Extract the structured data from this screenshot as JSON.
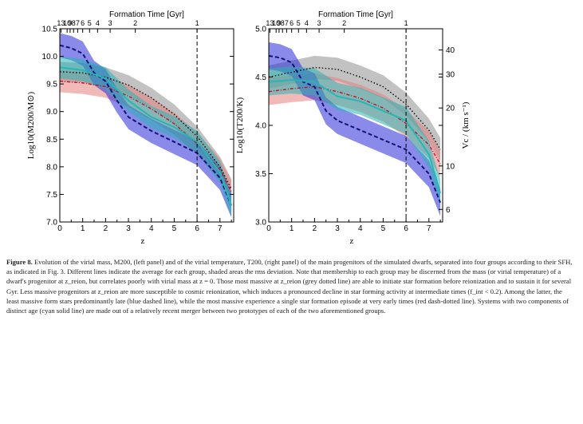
{
  "figure": {
    "panels": [
      {
        "id": "left",
        "top_axis_label": "Formation Time [Gyr]",
        "top_ticks": [
          "13",
          "10",
          "9",
          "8",
          "7",
          "6",
          "5",
          "4",
          "3",
          "2",
          "1"
        ],
        "bottom_ticks": [
          "0",
          "1",
          "2",
          "3",
          "4",
          "5",
          "6",
          "7"
        ],
        "xlabel": "z",
        "ylabel": "Log10(M200/M⊙)",
        "yticks": [
          "10.5",
          "10.0",
          "9.5",
          "9.0",
          "8.5",
          "8.0",
          "7.5",
          "7.0"
        ],
        "right_label": "",
        "right_ticks": []
      },
      {
        "id": "right",
        "top_axis_label": "Formation Time [Gyr]",
        "top_ticks": [
          "13",
          "10",
          "9",
          "8",
          "7",
          "6",
          "5",
          "4",
          "3",
          "2",
          "1"
        ],
        "bottom_ticks": [
          "0",
          "1",
          "2",
          "3",
          "4",
          "5",
          "6",
          "7"
        ],
        "xlabel": "z",
        "ylabel": "Log10(T200/K)",
        "yticks": [
          "5.0",
          "4.5",
          "4.0",
          "3.5",
          "3.0"
        ],
        "right_label": "Vc / (km s⁻¹)",
        "right_ticks": [
          "40",
          "30",
          "20",
          "10",
          "6"
        ]
      }
    ],
    "colors": {
      "grey": "#8f8f8f",
      "red": "#e88080",
      "blue": "#2a2ad8",
      "cyan": "#2ab5b5"
    }
  },
  "chart_data": [
    {
      "type": "line",
      "panel": "left",
      "xlabel": "z",
      "ylabel": "Log10(M200/M⊙)",
      "xlim": [
        0,
        7.6
      ],
      "ylim": [
        7.0,
        10.5
      ],
      "reference_line_z": 6,
      "series": [
        {
          "style": "grey-dotted",
          "x": [
            0,
            1,
            2,
            3,
            4,
            5,
            6,
            7,
            7.5
          ],
          "y": [
            9.72,
            9.7,
            9.62,
            9.48,
            9.25,
            8.95,
            8.55,
            8.0,
            7.6
          ],
          "band": 0.18
        },
        {
          "style": "red-dash-dotted",
          "x": [
            0,
            1,
            2,
            3,
            4,
            5,
            6,
            7,
            7.5
          ],
          "y": [
            9.55,
            9.52,
            9.45,
            9.28,
            9.05,
            8.78,
            8.42,
            7.95,
            7.55
          ],
          "band": 0.2
        },
        {
          "style": "blue-dashed",
          "x": [
            0,
            0.5,
            1,
            1.5,
            2,
            2.5,
            3,
            4,
            5,
            6,
            7,
            7.5
          ],
          "y": [
            10.2,
            10.15,
            10.05,
            9.7,
            9.55,
            9.2,
            8.9,
            8.65,
            8.45,
            8.25,
            7.8,
            7.3
          ],
          "band": 0.22
        },
        {
          "style": "cyan-solid",
          "x": [
            0,
            1,
            2,
            3,
            4,
            5,
            6,
            7,
            7.5
          ],
          "y": [
            9.8,
            9.75,
            9.6,
            9.2,
            8.9,
            8.72,
            8.45,
            7.9,
            7.3
          ],
          "band": 0.2
        }
      ]
    },
    {
      "type": "line",
      "panel": "right",
      "xlabel": "z",
      "ylabel": "Log10(T200/K)",
      "xlim": [
        0,
        7.6
      ],
      "ylim": [
        3.0,
        5.0
      ],
      "reference_line_z": 6,
      "series": [
        {
          "style": "grey-dotted",
          "x": [
            0,
            1,
            2,
            3,
            4,
            5,
            6,
            7,
            7.5
          ],
          "y": [
            4.5,
            4.55,
            4.6,
            4.58,
            4.5,
            4.4,
            4.22,
            3.95,
            3.75
          ],
          "band": 0.12
        },
        {
          "style": "red-dash-dotted",
          "x": [
            0,
            1,
            2,
            3,
            4,
            5,
            6,
            7,
            7.5
          ],
          "y": [
            4.35,
            4.38,
            4.4,
            4.35,
            4.28,
            4.18,
            4.02,
            3.8,
            3.6
          ],
          "band": 0.14
        },
        {
          "style": "blue-dashed",
          "x": [
            0,
            0.5,
            1,
            1.5,
            2,
            2.5,
            3,
            4,
            5,
            6,
            7,
            7.5
          ],
          "y": [
            4.72,
            4.7,
            4.65,
            4.45,
            4.4,
            4.15,
            4.05,
            3.95,
            3.85,
            3.75,
            3.5,
            3.2
          ],
          "band": 0.14
        },
        {
          "style": "cyan-solid",
          "x": [
            0,
            1,
            2,
            3,
            4,
            5,
            6,
            7,
            7.5
          ],
          "y": [
            4.45,
            4.47,
            4.45,
            4.3,
            4.25,
            4.15,
            4.05,
            3.7,
            3.3
          ],
          "band": 0.14
        }
      ]
    }
  ],
  "caption": {
    "label": "Figure 8.",
    "text": "Evolution of the virial mass, M200, (left panel) and of the virial temperature, T200, (right panel) of the main progenitors of the simulated dwarfs, separated into four groups according to their SFH, as indicated in Fig. 3. Different lines indicate the average for each group, shaded areas the rms deviation. Note that membership to each group may be discerned from the mass (or virial temperature) of a dwarf's progenitor at z_reion, but correlates poorly with virial mass at z = 0. Those most massive at z_reion (grey dotted line) are able to initiate star formation before reionization and to sustain it for several Gyr. Less massive progenitors at z_reion are more susceptible to cosmic reionization, which induces a pronounced decline in star forming activity at intermediate times (f_int < 0.2). Among the latter, the least massive form stars predominantly late (blue dashed line), while the most massive experience a single star formation episode at very early times (red dash-dotted line). Systems with two components of distinct age (cyan solid line) are made out of a relatively recent merger between two prototypes of each of the two aforementioned groups."
  }
}
